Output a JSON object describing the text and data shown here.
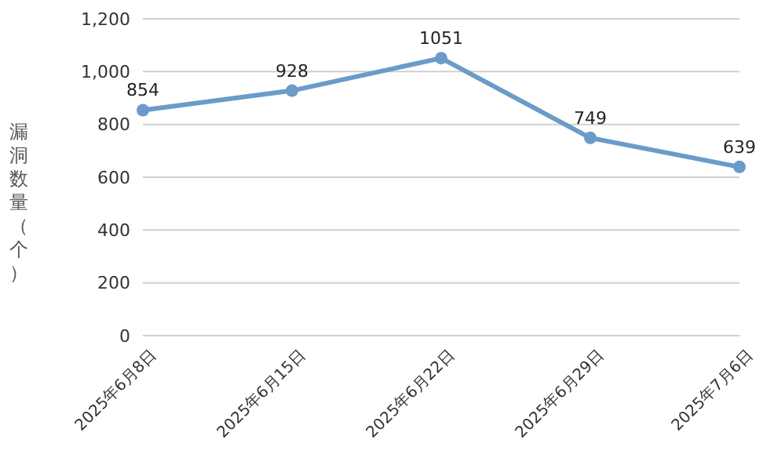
{
  "chart_data": {
    "type": "line",
    "ylabel": "漏洞数量（个）",
    "categories": [
      "2025年6月8日",
      "2025年6月15日",
      "2025年6月22日",
      "2025年6月29日",
      "2025年7月6日"
    ],
    "series": [
      {
        "color": "#6b9bc9",
        "values": [
          854,
          928,
          1051,
          749,
          639
        ]
      }
    ],
    "ylim": [
      0,
      1200
    ],
    "yticks": [
      0,
      200,
      400,
      600,
      800,
      {
        "value": 1000,
        "label": "1,000"
      },
      {
        "value": 1200,
        "label": "1,200"
      }
    ],
    "grid": "y",
    "marker": "circle",
    "data_labels": true,
    "line_style": "solid"
  }
}
